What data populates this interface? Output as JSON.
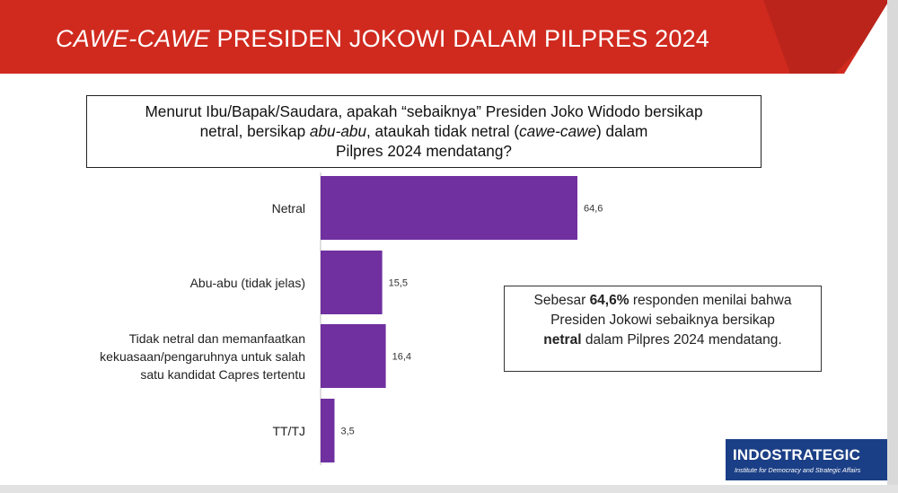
{
  "banner": {
    "title_italic": "CAWE-CAWE",
    "title_rest": " PRESIDEN JOKOWI DALAM PILPRES 2024",
    "colors": {
      "red": "#d02a1f",
      "dark_red": "#7f1610"
    }
  },
  "question": {
    "line1": "Menurut Ibu/Bapak/Saudara, apakah “sebaiknya” Presiden Joko Widodo bersikap",
    "line2_a": "netral, bersikap ",
    "line2_italic": "abu-abu",
    "line2_b": ", ataukah tidak netral (",
    "line2_italic2": "cawe-cawe",
    "line2_c": ") dalam",
    "line3": "Pilpres 2024 mendatang?"
  },
  "chart_data": {
    "type": "bar",
    "orientation": "horizontal",
    "categories": [
      "Netral",
      "Abu-abu (tidak jelas)",
      "Tidak netral dan memanfaatkan kekuasaan/pengaruhnya untuk salah satu kandidat Capres tertentu",
      "TT/TJ"
    ],
    "category_lines": [
      [
        "Netral"
      ],
      [
        "Abu-abu (tidak jelas)"
      ],
      [
        "Tidak netral dan memanfaatkan",
        "kekuasaan/pengaruhnya untuk salah",
        "satu kandidat Capres tertentu"
      ],
      [
        "TT/TJ"
      ]
    ],
    "values": [
      64.6,
      15.5,
      16.4,
      3.5
    ],
    "value_labels": [
      "64,6",
      "15,5",
      "16,4",
      "3,5"
    ],
    "bar_color": "#7030a0",
    "xlim": [
      0,
      64.6
    ]
  },
  "callout": {
    "line1_a": "Sebesar ",
    "line1_bold": "64,6%",
    "line1_b": " responden menilai bahwa",
    "line2": "Presiden Jokowi sebaiknya bersikap",
    "line3_bold": "netral",
    "line3_b": " dalam Pilpres 2024 mendatang."
  },
  "logo": {
    "name": "INDOSTRATEGIC",
    "tagline": "Institute for Democracy and Strategic Affairs",
    "color": "#1b3f86"
  }
}
